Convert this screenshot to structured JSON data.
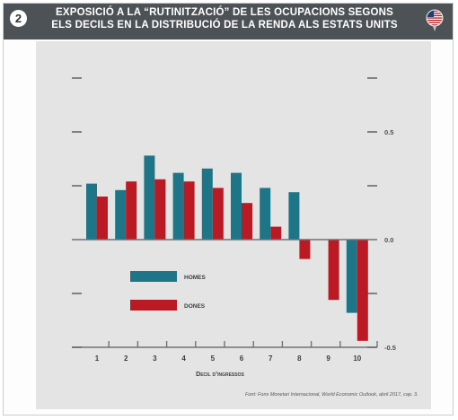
{
  "badge": "2",
  "title_lines": [
    "EXPOSICIÓ A LA “RUTINITZACIÓ” DE LES OCUPACIONS SEGONS",
    "ELS DECILS EN LA DISTRIBUCIÓ DE LA RENDA ALS ESTATS UNITS"
  ],
  "flag_icon": "us-flag-icon",
  "colors": {
    "header": "#4d5256",
    "homes": "#1e7587",
    "dones": "#bb1a24",
    "panel": "#e4e4e4"
  },
  "source_text": "Font: Fons Monetari Internacional, World Economic Outlook, abril 2017, cap. 3.",
  "chart_data": {
    "type": "bar",
    "categories": [
      "1",
      "2",
      "3",
      "4",
      "5",
      "6",
      "7",
      "8",
      "9",
      "10"
    ],
    "series": [
      {
        "name": "HOMES",
        "values": [
          0.26,
          0.23,
          0.39,
          0.31,
          0.33,
          0.31,
          0.24,
          0.22,
          0,
          -0.34
        ]
      },
      {
        "name": "DONES",
        "values": [
          0.2,
          0.27,
          0.28,
          0.27,
          0.24,
          0.17,
          0.06,
          -0.09,
          -0.28,
          -0.47
        ]
      }
    ],
    "xlabel": "Decil d’ingressos",
    "ylabel": "",
    "ylim": [
      -0.5,
      0.5
    ],
    "yticks": [
      -0.5,
      -0.25,
      0,
      0.25,
      0.5
    ],
    "yticks_labeled": [
      {
        "value": 0.5,
        "label": "0.5"
      },
      {
        "value": 0.0,
        "label": "0.0"
      },
      {
        "value": -0.5,
        "label": "-0.5"
      }
    ],
    "legend_position": "left-center-lower"
  }
}
